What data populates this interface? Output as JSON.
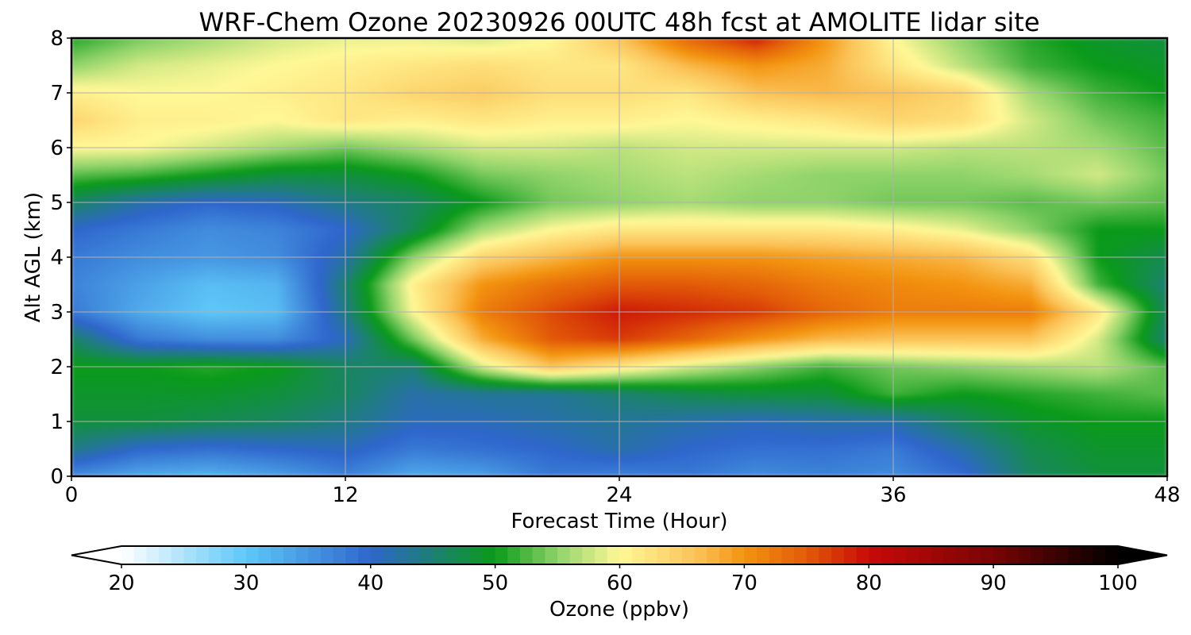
{
  "chart_data": {
    "type": "heatmap",
    "title": "WRF-Chem Ozone  20230926 00UTC 48h fcst at AMOLITE lidar site",
    "xlabel": "Forecast Time (Hour)",
    "ylabel": "Alt AGL (km)",
    "xlim": [
      0,
      48
    ],
    "ylim": [
      0,
      8
    ],
    "x_ticks": [
      0,
      12,
      24,
      36,
      48
    ],
    "y_ticks": [
      0,
      1,
      2,
      3,
      4,
      5,
      6,
      7,
      8
    ],
    "grid": true,
    "colorbar": {
      "label": "Ozone  (ppbv)",
      "range": [
        20,
        100
      ],
      "ticks": [
        20,
        30,
        40,
        50,
        60,
        70,
        80,
        90,
        100
      ],
      "orientation": "horizontal",
      "extend": "both",
      "stops": [
        {
          "value": 20,
          "color": "#ffffff"
        },
        {
          "value": 30,
          "color": "#5ec8f8"
        },
        {
          "value": 40,
          "color": "#2f66cc"
        },
        {
          "value": 50,
          "color": "#0a9a1a"
        },
        {
          "value": 55,
          "color": "#8fd36a"
        },
        {
          "value": 60,
          "color": "#fff897"
        },
        {
          "value": 66,
          "color": "#fbc45a"
        },
        {
          "value": 70,
          "color": "#f39410"
        },
        {
          "value": 75,
          "color": "#e25a08"
        },
        {
          "value": 80,
          "color": "#c80a08"
        },
        {
          "value": 90,
          "color": "#780404"
        },
        {
          "value": 100,
          "color": "#000000"
        }
      ]
    },
    "x": [
      0,
      3,
      6,
      9,
      12,
      15,
      18,
      21,
      24,
      27,
      30,
      33,
      36,
      39,
      42,
      45,
      48
    ],
    "y": [
      0,
      0.5,
      1,
      1.5,
      2,
      2.5,
      3,
      3.5,
      4,
      4.5,
      5,
      5.5,
      6,
      6.5,
      7,
      7.5,
      8
    ],
    "z": [
      [
        36,
        33,
        32,
        34,
        37,
        33,
        34,
        38,
        37,
        38,
        36,
        37,
        36,
        39,
        46,
        48,
        48
      ],
      [
        44,
        40,
        39,
        40,
        41,
        38,
        39,
        40,
        42,
        40,
        39,
        39,
        38,
        42,
        47,
        49,
        49
      ],
      [
        48,
        48,
        47,
        46,
        44,
        41,
        41,
        42,
        43,
        42,
        41,
        42,
        42,
        46,
        49,
        50,
        50
      ],
      [
        49,
        49,
        49,
        48,
        46,
        42,
        43,
        43,
        45,
        47,
        48,
        48,
        52,
        50,
        51,
        52,
        53
      ],
      [
        50,
        50,
        51,
        50,
        46,
        45,
        58,
        66,
        62,
        58,
        55,
        52,
        54,
        55,
        56,
        57,
        53
      ],
      [
        46,
        38,
        36,
        36,
        41,
        54,
        68,
        75,
        77,
        74,
        70,
        67,
        66,
        66,
        66,
        58,
        45
      ],
      [
        38,
        33,
        30,
        31,
        44,
        60,
        72,
        76,
        79,
        78,
        77,
        74,
        72,
        72,
        72,
        62,
        46
      ],
      [
        37,
        34,
        31,
        32,
        45,
        61,
        70,
        73,
        75,
        75,
        74,
        72,
        71,
        70,
        68,
        52,
        45
      ],
      [
        38,
        36,
        35,
        36,
        42,
        55,
        64,
        67,
        70,
        70,
        70,
        69,
        68,
        67,
        63,
        50,
        47
      ],
      [
        40,
        38,
        36,
        37,
        40,
        47,
        56,
        60,
        62,
        62,
        62,
        62,
        61,
        59,
        55,
        50,
        50
      ],
      [
        46,
        42,
        40,
        41,
        44,
        46,
        50,
        54,
        55,
        56,
        55,
        55,
        54,
        54,
        53,
        54,
        53
      ],
      [
        53,
        52,
        50,
        48,
        48,
        50,
        54,
        55,
        56,
        57,
        56,
        55,
        55,
        55,
        56,
        58,
        54
      ],
      [
        60,
        60,
        58,
        56,
        54,
        56,
        58,
        58,
        57,
        58,
        58,
        58,
        58,
        57,
        57,
        56,
        53
      ],
      [
        64,
        61,
        61,
        60,
        62,
        61,
        62,
        61,
        61,
        60,
        61,
        62,
        64,
        63,
        58,
        54,
        52
      ],
      [
        61,
        60,
        60,
        61,
        62,
        64,
        65,
        63,
        63,
        62,
        66,
        67,
        66,
        64,
        56,
        52,
        50
      ],
      [
        55,
        58,
        59,
        60,
        61,
        62,
        63,
        62,
        62,
        67,
        70,
        68,
        62,
        57,
        52,
        50,
        49
      ],
      [
        51,
        54,
        56,
        58,
        59,
        59,
        58,
        60,
        66,
        74,
        79,
        70,
        60,
        55,
        51,
        49,
        48
      ]
    ]
  }
}
